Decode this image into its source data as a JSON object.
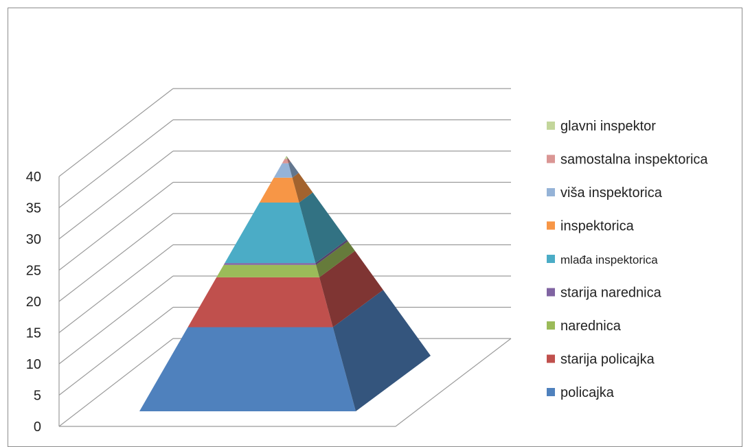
{
  "chart_data": {
    "type": "pyramid-3d-stacked",
    "title": "",
    "xlabel": "",
    "ylabel": "",
    "ylim": [
      0,
      40
    ],
    "y_ticks": [
      "0",
      "5",
      "10",
      "15",
      "20",
      "25",
      "30",
      "35",
      "40"
    ],
    "grid": true,
    "legend_position": "right",
    "total": 41,
    "series": [
      {
        "name": "policajka",
        "value": 13.5,
        "color": "#4F81BD"
      },
      {
        "name": "starija policajka",
        "value": 8,
        "color": "#C0504D"
      },
      {
        "name": "narednica",
        "value": 2,
        "color": "#9BBB59"
      },
      {
        "name": "starija narednica",
        "value": 0.3,
        "color": "#8064A2"
      },
      {
        "name": "mlađa inspektorica",
        "value": 9.7,
        "color": "#4BACC6"
      },
      {
        "name": "inspektorica",
        "value": 4,
        "color": "#F79646"
      },
      {
        "name": "viša inspektorica",
        "value": 2.3,
        "color": "#95B3D7"
      },
      {
        "name": "samostalna inspektorica",
        "value": 0.7,
        "color": "#DA9694"
      },
      {
        "name": "glavni inspektor",
        "value": 0.5,
        "color": "#C3D69B"
      }
    ]
  }
}
